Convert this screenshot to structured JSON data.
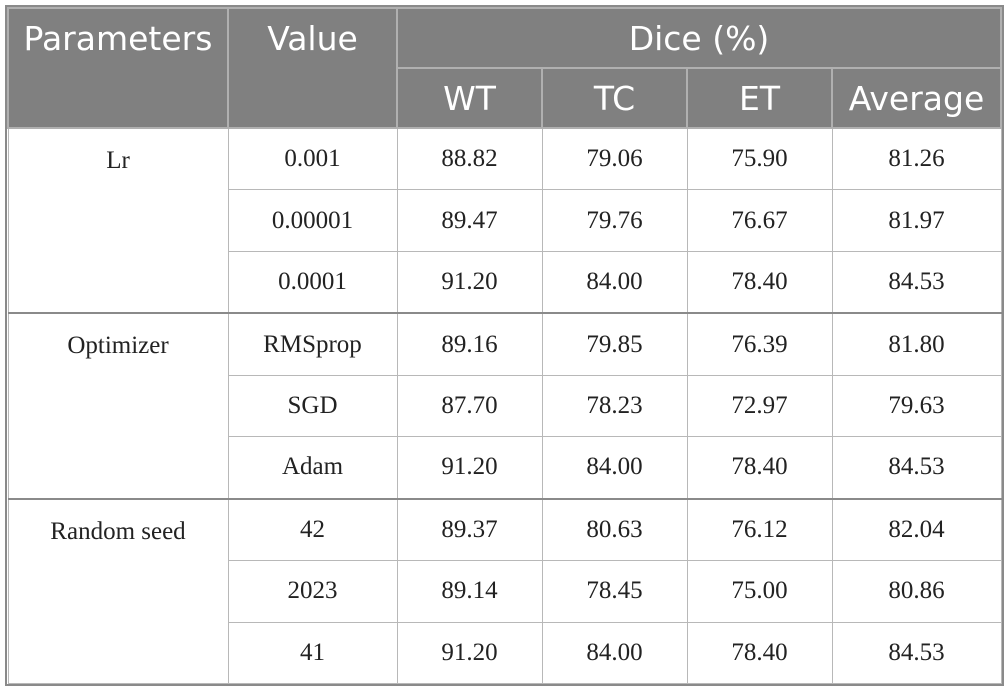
{
  "table": {
    "header": {
      "columns": [
        "Parameters",
        "Value"
      ],
      "group": "Dice (%)",
      "subcolumns": [
        "WT",
        "TC",
        "ET",
        "Average"
      ]
    },
    "groups": [
      {
        "name": "Lr",
        "rows": [
          {
            "value": "0.001",
            "scores": [
              "88.82",
              "79.06",
              "75.90",
              "81.26"
            ]
          },
          {
            "value": "0.00001",
            "scores": [
              "89.47",
              "79.76",
              "76.67",
              "81.97"
            ]
          },
          {
            "value": "0.0001",
            "scores": [
              "91.20",
              "84.00",
              "78.40",
              "84.53"
            ]
          }
        ]
      },
      {
        "name": "Optimizer",
        "rows": [
          {
            "value": "RMSprop",
            "scores": [
              "89.16",
              "79.85",
              "76.39",
              "81.80"
            ]
          },
          {
            "value": "SGD",
            "scores": [
              "87.70",
              "78.23",
              "72.97",
              "79.63"
            ]
          },
          {
            "value": "Adam",
            "scores": [
              "91.20",
              "84.00",
              "78.40",
              "84.53"
            ]
          }
        ]
      },
      {
        "name": "Random seed",
        "rows": [
          {
            "value": "42",
            "scores": [
              "89.37",
              "80.63",
              "76.12",
              "82.04"
            ]
          },
          {
            "value": "2023",
            "scores": [
              "89.14",
              "78.45",
              "75.00",
              "80.86"
            ]
          },
          {
            "value": "41",
            "scores": [
              "91.20",
              "84.00",
              "78.40",
              "84.53"
            ]
          }
        ]
      }
    ]
  }
}
